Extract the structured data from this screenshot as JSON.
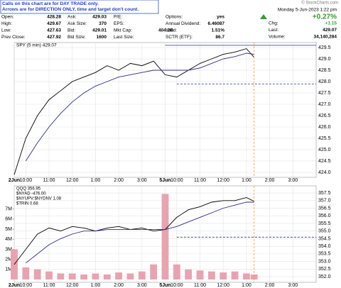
{
  "note": [
    "Calls on this chart are for DAY TRADE only.",
    "Arrows are for DIRECTION ONLY, time and target don't count."
  ],
  "quote": {
    "columns": [
      [
        {
          "label": "Open:",
          "value": "428.28"
        },
        {
          "label": "High:",
          "value": "429.67"
        },
        {
          "label": "Low:",
          "value": "427.63"
        },
        {
          "label": "Prev Close:",
          "value": "427.92"
        }
      ],
      [
        {
          "label": "Ask:",
          "value": "429.03"
        },
        {
          "label": "Ask Size:",
          "value": "370"
        },
        {
          "label": "Bid:",
          "value": "429.01"
        },
        {
          "label": "Bld Size:",
          "value": "1600"
        }
      ],
      [
        {
          "label": "P/E:"
        },
        {
          "label": "EPS:"
        },
        {
          "label": "Mkt Cap:",
          "value": "404.2B"
        },
        {
          "label": "Last Size:"
        }
      ],
      [
        {
          "label": "Options:",
          "value": "yes"
        },
        {
          "label": "Annual Dividend:",
          "value": "6.46087"
        },
        {
          "label": "Yield:",
          "value": "1.51%"
        },
        {
          "label": "SCTR (ETF):",
          "value": "86.7"
        }
      ]
    ]
  },
  "summary": {
    "date": "Monday  5-Jun-2023  1:22 pm",
    "change_pct": "+0.27%",
    "fields": [
      {
        "label": "Chg:",
        "value": "+1.15"
      },
      {
        "label": "Last:",
        "value": "429.07"
      },
      {
        "label": "Volume:",
        "value": "34,140,284"
      }
    ]
  },
  "stamp": "© StockCharts.com",
  "chart_data": [
    {
      "type": "line",
      "title": "SPY (5 min) 429.07",
      "x": [
        0,
        0.5,
        1,
        1.5,
        2,
        2.5,
        3,
        3.5,
        4,
        4.5,
        5,
        5.5,
        6,
        6.5,
        7,
        7.5,
        8,
        8.5,
        9,
        9.5,
        10,
        10.33
      ],
      "xlim": [
        0,
        13
      ],
      "xticks": [
        {
          "value": 0,
          "label": "2Jun"
        },
        {
          "value": 0.5,
          "label": "10:00"
        },
        {
          "value": 1.5,
          "label": "11:00"
        },
        {
          "value": 2.5,
          "label": "12:00"
        },
        {
          "value": 3.5,
          "label": "1:00"
        },
        {
          "value": 4.5,
          "label": "2:00"
        },
        {
          "value": 5.5,
          "label": "3:00"
        },
        {
          "value": 6.5,
          "label": "5Jun"
        },
        {
          "value": 7,
          "label": "10:00"
        },
        {
          "value": 8,
          "label": "11:00"
        },
        {
          "value": 9,
          "label": "12:00"
        },
        {
          "value": 10,
          "label": "1:00"
        },
        {
          "value": 11,
          "label": "2:00"
        },
        {
          "value": 12,
          "label": "3:00"
        }
      ],
      "ylim": [
        423.78,
        429.72
      ],
      "yticks": [
        {
          "value": 424,
          "label": "424.0"
        },
        {
          "value": 424.5,
          "label": "424.5"
        },
        {
          "value": 425,
          "label": "425.0"
        },
        {
          "value": 425.5,
          "label": "425.5"
        },
        {
          "value": 426,
          "label": "426.0"
        },
        {
          "value": 426.5,
          "label": "426.5"
        },
        {
          "value": 427,
          "label": "427.0"
        },
        {
          "value": 427.5,
          "label": "427.5"
        },
        {
          "value": 428,
          "label": "428.0"
        },
        {
          "value": 428.5,
          "label": "428.5"
        },
        {
          "value": 429,
          "label": "429.0"
        },
        {
          "value": 429.5,
          "label": "429.5"
        }
      ],
      "grid": true,
      "series": [
        {
          "color": "#000000",
          "values": [
            423.9,
            425.5,
            426.5,
            427.2,
            427.6,
            428.0,
            428.2,
            428.4,
            428.7,
            428.5,
            428.8,
            428.7,
            428.9,
            428.3,
            428.2,
            428.5,
            428.8,
            429.0,
            429.2,
            429.3,
            429.45,
            429.07
          ]
        },
        {
          "color": "#2b2b8c",
          "values": [
            null,
            424.5,
            425.3,
            426.0,
            426.6,
            427.1,
            427.5,
            427.8,
            428.0,
            428.2,
            428.3,
            428.4,
            428.5,
            428.5,
            428.5,
            428.5,
            428.6,
            428.8,
            429.0,
            429.1,
            429.25,
            429.2
          ]
        }
      ],
      "reference_lines": [
        {
          "value": 429.6,
          "color": "#2b2b8c",
          "style": "solid"
        },
        {
          "value": 427.9,
          "color": "#2b2b8c",
          "style": "dashed"
        }
      ]
    },
    {
      "type": "line",
      "titles": [
        "QQQ 356.95",
        "$NYAD -476.00",
        "$NYUPV:$NYDNV 1.08",
        "$TRIN 0.68"
      ],
      "x": [
        0,
        0.5,
        1,
        1.5,
        2,
        2.5,
        3,
        3.5,
        4,
        4.5,
        5,
        5.5,
        6,
        6.5,
        7,
        7.5,
        8,
        8.5,
        9,
        9.5,
        10,
        10.33
      ],
      "xlim": [
        0,
        13
      ],
      "xticks": [
        {
          "value": 0,
          "label": "2Jun"
        },
        {
          "value": 0.5,
          "label": "10:00"
        },
        {
          "value": 1.5,
          "label": "11:00"
        },
        {
          "value": 2.5,
          "label": "12:00"
        },
        {
          "value": 3.5,
          "label": "1:00"
        },
        {
          "value": 4.5,
          "label": "2:00"
        },
        {
          "value": 5.5,
          "label": "3:00"
        },
        {
          "value": 6.5,
          "label": "5Jun"
        },
        {
          "value": 7,
          "label": "10:00"
        },
        {
          "value": 8,
          "label": "11:00"
        },
        {
          "value": 9,
          "label": "12:00"
        },
        {
          "value": 10,
          "label": "1:00"
        },
        {
          "value": 11,
          "label": "2:00"
        },
        {
          "value": 12,
          "label": "3:00"
        }
      ],
      "ylim": [
        -280000,
        9300000
      ],
      "yticks": [
        {
          "value": 1000000,
          "label": "1M"
        },
        {
          "value": 2000000,
          "label": "2M"
        },
        {
          "value": 3000000,
          "label": "3M"
        },
        {
          "value": 4000000,
          "label": "4M"
        },
        {
          "value": 5000000,
          "label": "5M"
        },
        {
          "value": 6000000,
          "label": "6M"
        },
        {
          "value": 7000000,
          "label": "7M"
        }
      ],
      "y2lim": [
        351.63,
        357.97
      ],
      "y2ticks": [
        {
          "value": 352,
          "label": "352.0"
        },
        {
          "value": 352.5,
          "label": "352.5"
        },
        {
          "value": 353,
          "label": "353.0"
        },
        {
          "value": 353.5,
          "label": "353.5"
        },
        {
          "value": 354,
          "label": "354.0"
        },
        {
          "value": 354.5,
          "label": "354.5"
        },
        {
          "value": 355,
          "label": "355.0"
        },
        {
          "value": 355.5,
          "label": "355.5"
        },
        {
          "value": 356,
          "label": "356.0"
        },
        {
          "value": 356.5,
          "label": "356.5"
        },
        {
          "value": 357,
          "label": "357.0"
        },
        {
          "value": 357.5,
          "label": "357.5"
        }
      ],
      "grid": true,
      "series": [
        {
          "type": "bar",
          "color": "#e8a3b0",
          "values": [
            3000000,
            1200000,
            1000000,
            800000,
            600000,
            600000,
            500000,
            600000,
            500000,
            700000,
            600000,
            800000,
            1500000,
            8500000,
            1500000,
            1000000,
            900000,
            800000,
            700000,
            800000,
            600000,
            500000
          ]
        },
        {
          "axis": "y2",
          "color": "#000000",
          "values": [
            352.8,
            353.8,
            354.8,
            355.2,
            355.0,
            355.3,
            355.2,
            355.0,
            355.2,
            355.3,
            355.1,
            355.2,
            355.0,
            355.1,
            355.9,
            356.4,
            356.6,
            356.9,
            357.0,
            357.0,
            357.2,
            356.95
          ]
        },
        {
          "axis": "y2",
          "color": "#2b2b8c",
          "values": [
            null,
            352.9,
            353.5,
            354.1,
            354.5,
            354.8,
            355.0,
            355.0,
            355.1,
            355.1,
            355.1,
            355.1,
            355.1,
            355.1,
            355.3,
            355.6,
            355.9,
            356.2,
            356.5,
            356.7,
            356.9,
            356.9
          ]
        }
      ],
      "reference_lines": [
        {
          "value": 354.6,
          "axis": "y2",
          "color": "#2b2b8c",
          "style": "dashed"
        }
      ]
    }
  ]
}
